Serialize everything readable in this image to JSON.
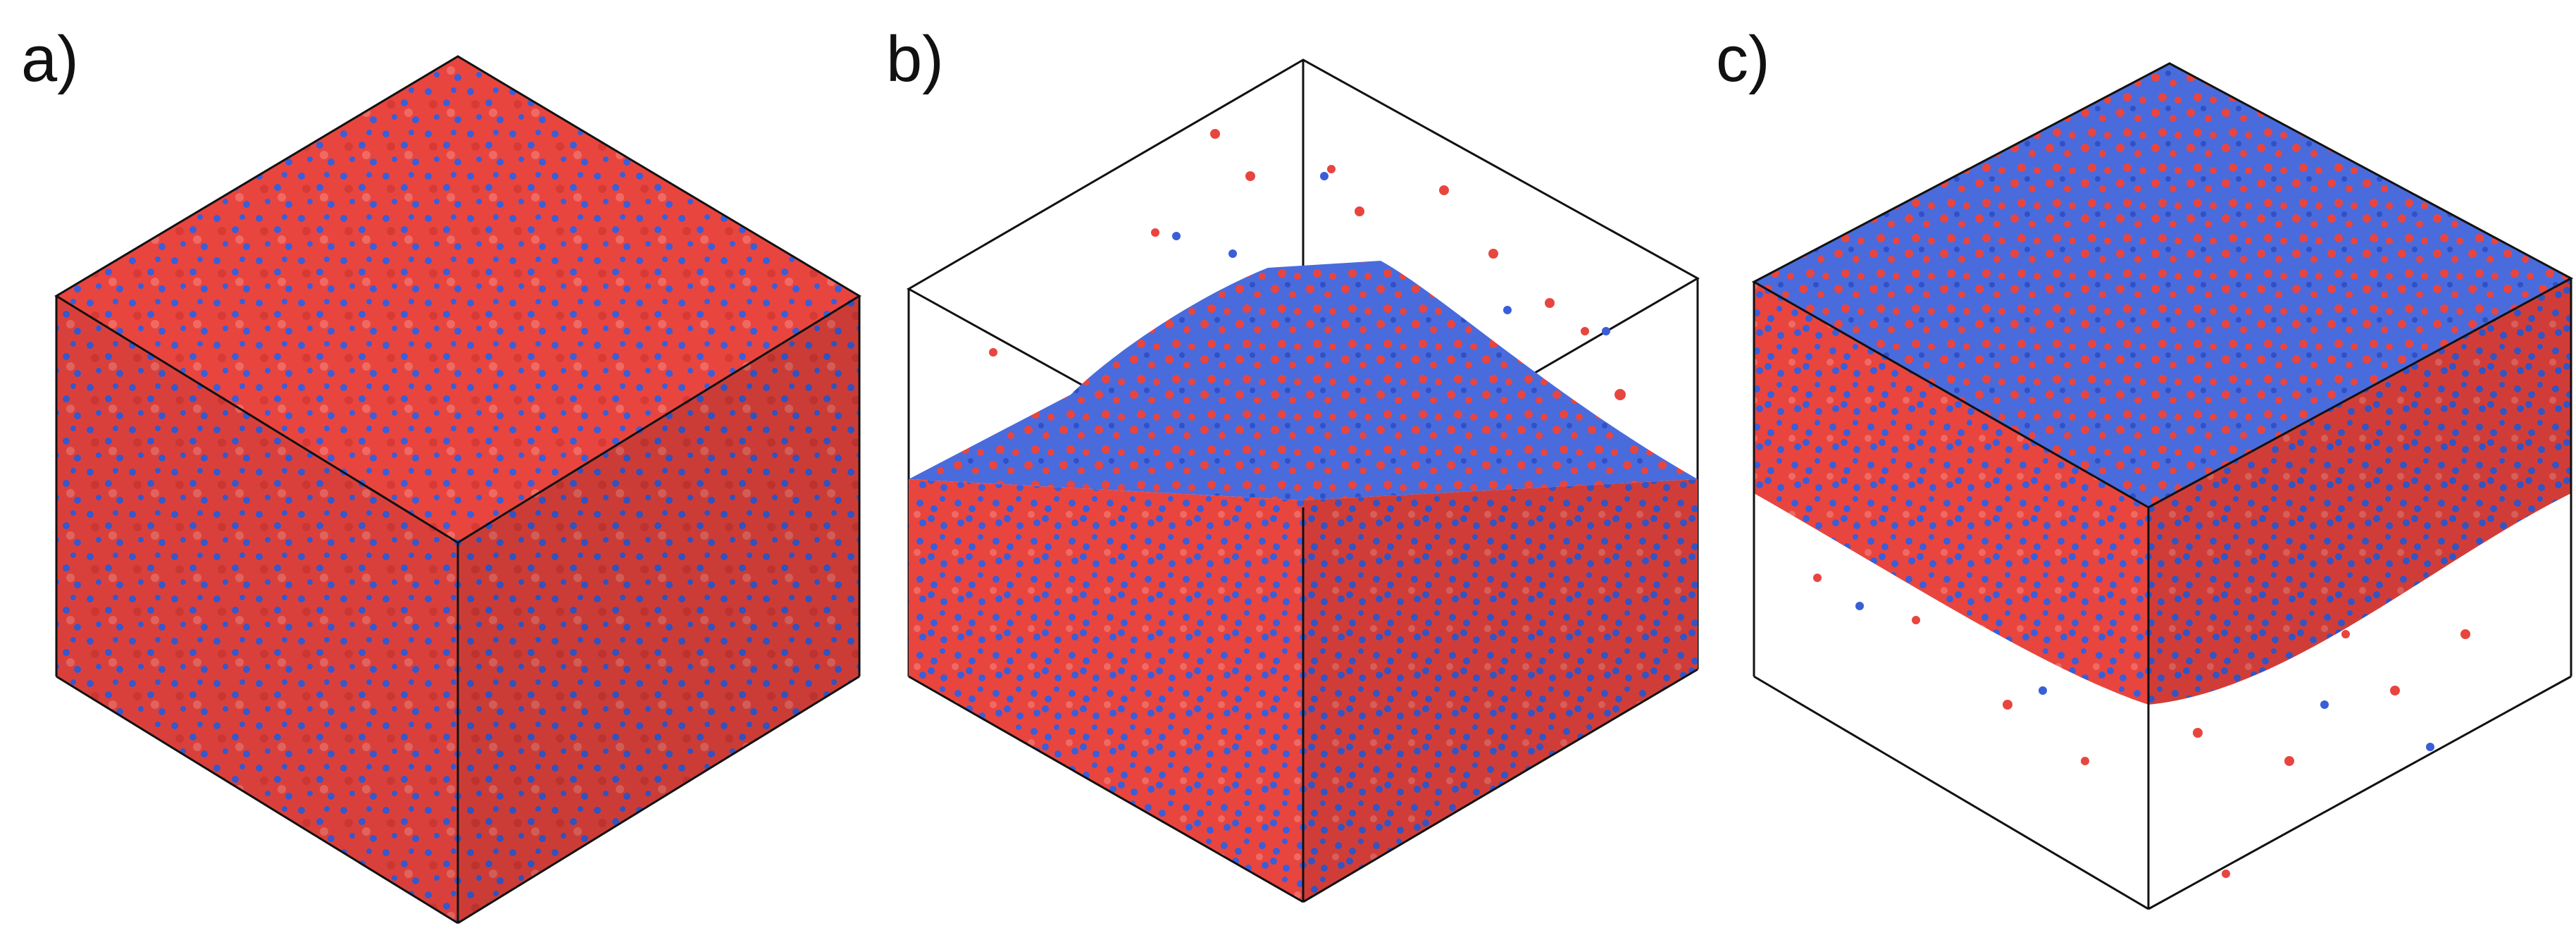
{
  "panels": [
    {
      "id": "a",
      "label": "a)"
    },
    {
      "id": "b",
      "label": "b)"
    },
    {
      "id": "c",
      "label": "c)"
    }
  ],
  "colors": {
    "particle_red": "#e8453f",
    "particle_blue": "#3a5ed8",
    "box_edges": "#111111",
    "background": "#ffffff"
  }
}
